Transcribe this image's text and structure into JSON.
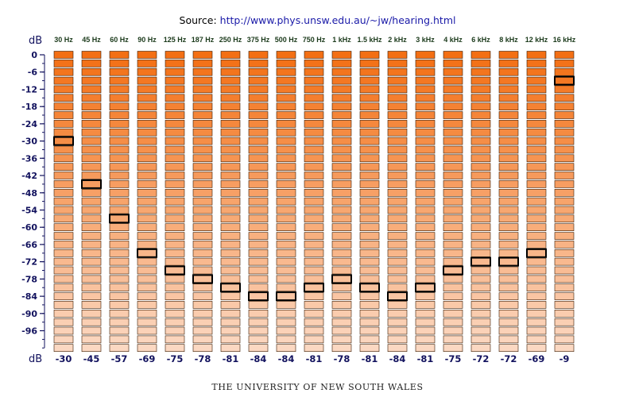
{
  "source": {
    "label": "Source:",
    "url": "http://www.phys.unsw.edu.au/~jw/hearing.html"
  },
  "footer": "THE UNIVERSITY OF NEW SOUTH WALES",
  "chart_data": {
    "type": "heatmap",
    "title": "",
    "ylabel": "dB",
    "bottom_label": "dB",
    "categories": [
      "30 Hz",
      "45 Hz",
      "60 Hz",
      "90 Hz",
      "125 Hz",
      "187 Hz",
      "250 Hz",
      "375 Hz",
      "500 Hz",
      "750 Hz",
      "1 kHz",
      "1.5 kHz",
      "2 kHz",
      "3 kHz",
      "4 kHz",
      "6 kHz",
      "8 kHz",
      "12 kHz",
      "16 kHz"
    ],
    "values": [
      -30,
      -45,
      -57,
      -69,
      -75,
      -78,
      -81,
      -84,
      -84,
      -81,
      -78,
      -81,
      -84,
      -81,
      -75,
      -72,
      -72,
      -69,
      -9
    ],
    "value_labels": [
      "-30",
      "-45",
      "-57",
      "-69",
      "-75",
      "-78",
      "-81",
      "-84",
      "-84",
      "-81",
      "-78",
      "-81",
      "-84",
      "-81",
      "-75",
      "-72",
      "-72",
      "-69",
      "-9"
    ],
    "y_ticks": [
      "0",
      "-6",
      "-12",
      "-18",
      "-24",
      "-30",
      "-36",
      "-42",
      "-48",
      "-54",
      "-60",
      "-66",
      "-72",
      "-78",
      "-84",
      "-90",
      "-96"
    ],
    "ylim": [
      -102,
      0
    ],
    "step_db": 3,
    "grid": false,
    "colors": {
      "loud": "#f36f14",
      "quiet": "#fbd8c2",
      "border": "#3a1a00",
      "marker": "#000000"
    }
  }
}
